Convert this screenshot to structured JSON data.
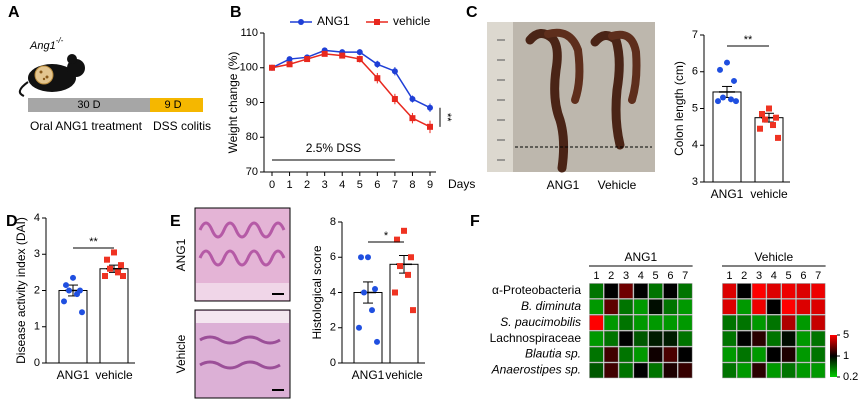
{
  "panel_labels": [
    "A",
    "B",
    "C",
    "D",
    "E",
    "F"
  ],
  "schematic": {
    "gene": "Ang1",
    "genotype": "-/-",
    "phases": [
      {
        "label": "30 D",
        "caption": "Oral ANG1 treatment"
      },
      {
        "label": "9 D",
        "caption": "DSS colitis"
      }
    ]
  },
  "photo": {
    "labels": [
      "ANG1",
      "Vehicle"
    ]
  },
  "histology": {
    "labels": [
      "ANG1",
      "Vehicle"
    ]
  },
  "chart_data": [
    {
      "type": "line",
      "ylabel": "Weight change (%)",
      "xlabel": "Days",
      "x": [
        0,
        1,
        2,
        3,
        4,
        5,
        6,
        7,
        8,
        9
      ],
      "xlim": [
        0,
        9
      ],
      "xticks": [
        0,
        1,
        2,
        3,
        4,
        5,
        6,
        7,
        8,
        9
      ],
      "ylim": [
        70,
        110
      ],
      "yticks": [
        70,
        80,
        90,
        100,
        110
      ],
      "legend": "top",
      "series": [
        {
          "name": "ANG1",
          "color": "#1f3fd6",
          "marker": "circle",
          "values": [
            100,
            102.5,
            103,
            105,
            104.5,
            104.5,
            101,
            99,
            91,
            88.5
          ],
          "errors": [
            0,
            0.5,
            0.5,
            0.7,
            0.7,
            0.8,
            1,
            1.2,
            1,
            1.2
          ]
        },
        {
          "name": "vehicle",
          "color": "#e8281e",
          "marker": "square",
          "values": [
            100,
            101,
            102.5,
            104,
            103.5,
            102.5,
            97,
            91,
            85.5,
            83
          ],
          "errors": [
            0,
            0.5,
            0.5,
            0.7,
            0.8,
            1,
            1.5,
            1.5,
            1.5,
            1.8
          ]
        }
      ],
      "annotation": {
        "text": "2.5% DSS",
        "range": [
          0,
          7
        ]
      },
      "significance": "**"
    },
    {
      "type": "bar",
      "ylabel": "Colon length (cm)",
      "categories": [
        "ANG1",
        "vehicle"
      ],
      "values": [
        5.45,
        4.75
      ],
      "errors": [
        0.15,
        0.12
      ],
      "points": [
        [
          6.25,
          6.05,
          5.75,
          5.3,
          5.25,
          5.2,
          5.2
        ],
        [
          5.0,
          4.85,
          4.75,
          4.7,
          4.55,
          4.45,
          4.2
        ]
      ],
      "point_colors": [
        "#1f4fe0",
        "#ef3322"
      ],
      "point_markers": [
        "circle",
        "square"
      ],
      "ylim": [
        3,
        7
      ],
      "yticks": [
        3,
        4,
        5,
        6,
        7
      ],
      "significance": "**"
    },
    {
      "type": "bar",
      "ylabel": "Disease activity index (DAI)",
      "categories": [
        "ANG1",
        "vehicle"
      ],
      "values": [
        2.0,
        2.6
      ],
      "errors": [
        0.15,
        0.1
      ],
      "points": [
        [
          2.35,
          2.15,
          2.0,
          2.0,
          1.9,
          1.7,
          1.4
        ],
        [
          3.05,
          2.85,
          2.7,
          2.6,
          2.5,
          2.4,
          2.4
        ]
      ],
      "point_colors": [
        "#1f4fe0",
        "#ef3322"
      ],
      "point_markers": [
        "circle",
        "square"
      ],
      "ylim": [
        0,
        4
      ],
      "yticks": [
        0,
        1,
        2,
        3,
        4
      ],
      "significance": "**"
    },
    {
      "type": "bar",
      "ylabel": "Histological score",
      "categories": [
        "ANG1",
        "vehicle"
      ],
      "values": [
        4.0,
        5.6
      ],
      "errors": [
        0.6,
        0.5
      ],
      "points": [
        [
          6,
          6,
          4.2,
          4,
          3,
          2,
          1.2
        ],
        [
          7.5,
          7,
          6,
          5.5,
          5,
          4,
          3
        ]
      ],
      "point_colors": [
        "#1f4fe0",
        "#ef3322"
      ],
      "point_markers": [
        "circle",
        "square"
      ],
      "ylim": [
        0,
        8
      ],
      "yticks": [
        0,
        2,
        4,
        6,
        8
      ],
      "significance": "*"
    },
    {
      "type": "heatmap",
      "rows": [
        "α-Proteobacteria",
        "B. diminuta",
        "S. paucimobilis",
        "Lachnospiraceae",
        "Blautia sp.",
        "Anaerostipes sp."
      ],
      "row_colors": [
        "#000000",
        "#7030a0",
        "#7030a0",
        "#000000",
        "#00b050",
        "#00b050"
      ],
      "row_italic": [
        false,
        true,
        true,
        false,
        true,
        true
      ],
      "columns": [
        "1",
        "2",
        "3",
        "4",
        "5",
        "6",
        "7"
      ],
      "groups": [
        {
          "name": "ANG1",
          "values": [
            [
              0.4,
              1,
              2,
              1,
              0.4,
              1,
              0.4
            ],
            [
              0.3,
              1.8,
              0.4,
              0.3,
              0.9,
              0.4,
              0.3
            ],
            [
              5,
              0.3,
              0.4,
              0.3,
              0.3,
              0.3,
              0.3
            ],
            [
              0.3,
              0.4,
              1,
              0.5,
              0.8,
              0.8,
              0.4
            ],
            [
              0.4,
              1.5,
              0.4,
              0.3,
              1.1,
              1.6,
              1
            ],
            [
              0.5,
              1.5,
              0.4,
              1,
              0.4,
              1.2,
              1.4
            ]
          ]
        },
        {
          "name": "Vehicle",
          "values": [
            [
              4,
              1,
              5,
              4,
              4.5,
              4,
              4.5
            ],
            [
              4,
              0.3,
              4.5,
              1,
              5,
              4,
              4
            ],
            [
              0.4,
              0.4,
              0.3,
              0.4,
              3,
              0.3,
              3.5
            ],
            [
              0.4,
              1,
              1.3,
              0.4,
              0.9,
              0.3,
              0.4
            ],
            [
              0.3,
              0.4,
              0.3,
              1,
              1.2,
              0.3,
              0.4
            ],
            [
              0.4,
              0.3,
              1.3,
              0.3,
              0.4,
              0.3,
              0.3
            ]
          ]
        }
      ],
      "log_scale": true,
      "clim": [
        0.2,
        5
      ],
      "cticks": [
        0.2,
        1,
        5
      ],
      "colors": [
        "#00cc00",
        "#000000",
        "#ff0000"
      ]
    }
  ]
}
